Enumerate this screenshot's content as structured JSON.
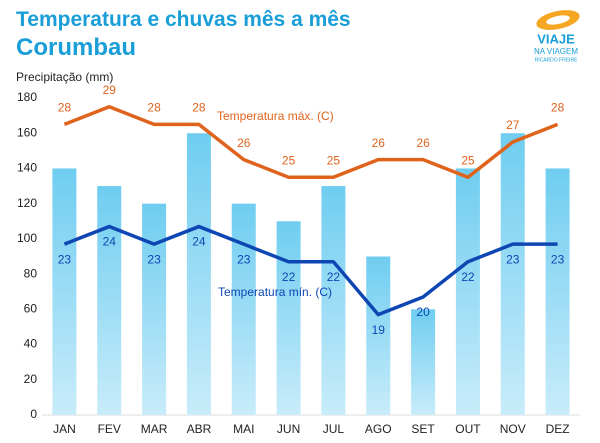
{
  "chart_data": {
    "type": "bar",
    "title": "Temperatura e chuvas mês a mês",
    "subtitle": "Corumbau",
    "y_label": "Precipitação (mm)",
    "logo": {
      "line1": "VIAJE",
      "line2": "NA VIAGEM",
      "line3": "RICARDO FREIRE"
    },
    "categories": [
      "JAN",
      "FEV",
      "MAR",
      "ABR",
      "MAI",
      "JUN",
      "JUL",
      "AGO",
      "SET",
      "OUT",
      "NOV",
      "DEZ"
    ],
    "ylim": [
      0,
      180
    ],
    "yticks": [
      0,
      20,
      40,
      60,
      80,
      100,
      120,
      140,
      160,
      180
    ],
    "grid": false,
    "y2lim": [
      11.5,
      29.5
    ],
    "y3lim": [
      13.3,
      31.3
    ],
    "series": [
      {
        "type": "bar",
        "color": "#6fcdf0",
        "values": [
          140,
          130,
          120,
          160,
          120,
          110,
          130,
          90,
          60,
          140,
          160,
          140
        ]
      },
      {
        "type": "line",
        "name": "Temperatura máx. (C)",
        "axis": "y2",
        "color": "#e0631c",
        "label_side": "above",
        "values": [
          28,
          29,
          28,
          28,
          26,
          25,
          25,
          26,
          26,
          25,
          27,
          28
        ]
      },
      {
        "type": "line",
        "name": "Temperatura mín. (C)",
        "axis": "y3",
        "color": "#0e47b3",
        "label_side": "below",
        "values": [
          23,
          24,
          23,
          24,
          23,
          22,
          22,
          19,
          20,
          22,
          23,
          23
        ]
      }
    ]
  }
}
